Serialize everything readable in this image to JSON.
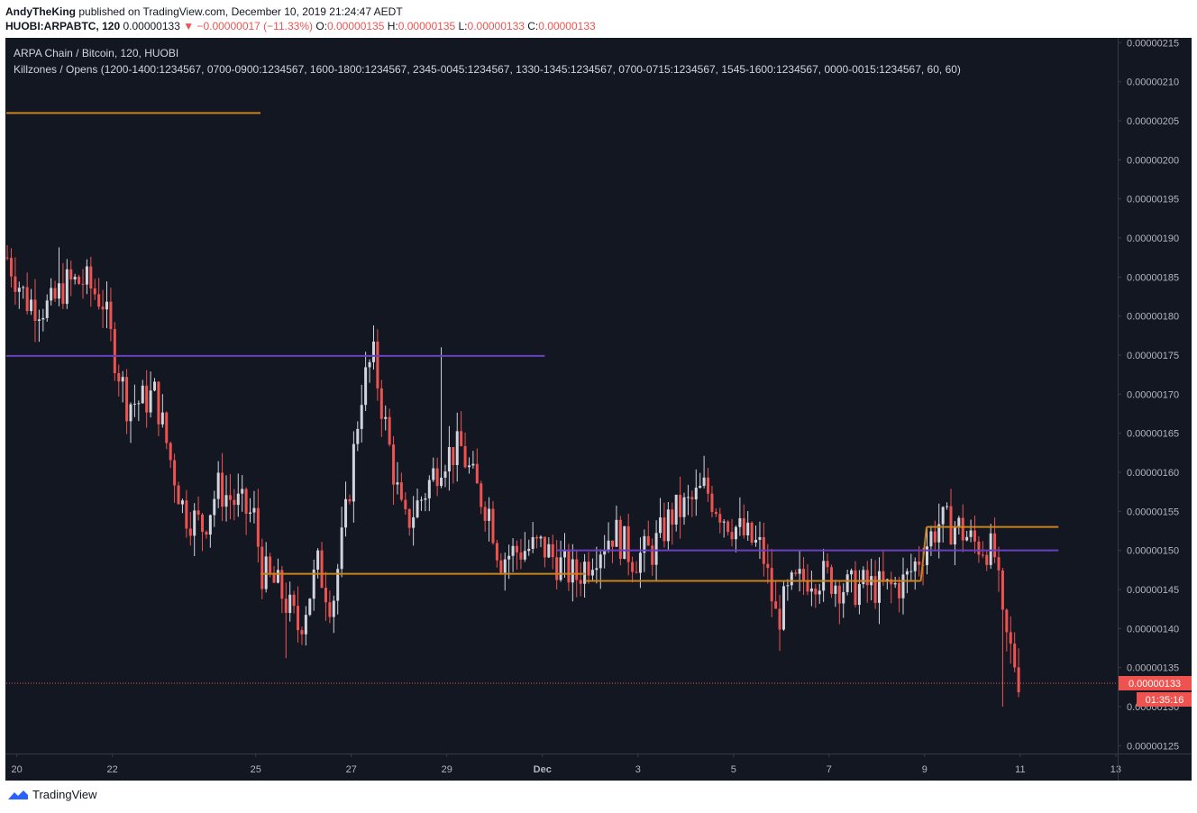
{
  "header": {
    "author": "AndyTheKing",
    "published": "published on TradingView.com, December 10, 2019 21:24:47 AEDT",
    "symbol": "HUOBI:ARPABTC, 120",
    "last": "0.00000133",
    "change": "▼ −0.00000017 (−11.33%)",
    "o_label": "O:",
    "o": "0.00000135",
    "h_label": "H:",
    "h": "0.00000135",
    "l_label": "L:",
    "l": "0.00000133",
    "c_label": "C:",
    "c": "0.00000133"
  },
  "legend": {
    "series": "ARPA Chain / Bitcoin, 120, HUOBI",
    "indicator": "Killzones / Opens (1200-1400:1234567, 0700-0900:1234567, 1600-1800:1234567, 2345-0045:1234567, 1330-1345:1234567, 0700-0715:1234567, 1545-1600:1234567, 0000-0015:1234567, 60, 60)"
  },
  "price_label": "0.00000133",
  "countdown": "01:35:16",
  "footer": {
    "brand": "TradingView"
  },
  "colors": {
    "background": "#131722",
    "up": "#d1d4dc",
    "down": "#ef5350",
    "orange": "#c9821c",
    "purple": "#6a3fbf",
    "axis_text": "#b2b5be"
  },
  "chart_data": {
    "type": "candlestick",
    "y_ticks": [
      "0.00000125",
      "0.00000130",
      "0.00000135",
      "0.00000140",
      "0.00000145",
      "0.00000150",
      "0.00000155",
      "0.00000160",
      "0.00000165",
      "0.00000170",
      "0.00000175",
      "0.00000180",
      "0.00000185",
      "0.00000190",
      "0.00000195",
      "0.00000200",
      "0.00000205",
      "0.00000210",
      "0.00000215"
    ],
    "ylim": [
      1.24e-06,
      2.155e-06
    ],
    "x_ticks": [
      "20",
      "22",
      "25",
      "27",
      "29",
      "Dec",
      "3",
      "5",
      "7",
      "9",
      "11",
      "13"
    ],
    "x_tick_days": [
      20,
      22,
      25,
      27,
      29,
      31,
      33,
      35,
      37,
      39,
      41,
      43
    ],
    "xlim": [
      19.78,
      43.04
    ],
    "last_price": 1.33e-06,
    "level_lines": [
      {
        "color": "orange",
        "x0": 19.78,
        "x1": 25.1,
        "y": 2.06e-06
      },
      {
        "color": "purple",
        "x0": 19.78,
        "x1": 31.05,
        "y": 1.749e-06
      },
      {
        "color": "orange",
        "x0": 25.1,
        "x1": 31.9,
        "y": 1.47e-06
      },
      {
        "color": "orange",
        "x0": 31.9,
        "x1": 38.92,
        "y": 1.461e-06
      },
      {
        "color": "orange",
        "x0": 38.92,
        "x1": 39.04,
        "y": 1.461e-06,
        "y_end": 1.53e-06
      },
      {
        "color": "orange",
        "x0": 39.04,
        "x1": 41.8,
        "y": 1.53e-06
      },
      {
        "color": "purple",
        "x0": 31.3,
        "x1": 41.8,
        "y": 1.5e-06
      }
    ],
    "price_path": [
      [
        19.8,
        1.875e-06
      ],
      [
        20.2,
        1.82e-06
      ],
      [
        20.7,
        1.81e-06
      ],
      [
        21.0,
        1.84e-06
      ],
      [
        21.4,
        1.845e-06
      ],
      [
        21.8,
        1.82e-06
      ],
      [
        21.95,
        1.775e-06
      ],
      [
        22.3,
        1.69e-06
      ],
      [
        22.6,
        1.69e-06
      ],
      [
        22.9,
        1.7e-06
      ],
      [
        23.2,
        1.62e-06
      ],
      [
        23.5,
        1.55e-06
      ],
      [
        23.9,
        1.53e-06
      ],
      [
        24.2,
        1.58e-06
      ],
      [
        24.6,
        1.56e-06
      ],
      [
        25.0,
        1.54e-06
      ],
      [
        25.1,
        1.475e-06
      ],
      [
        25.5,
        1.45e-06
      ],
      [
        25.9,
        1.4e-06
      ],
      [
        26.3,
        1.48e-06
      ],
      [
        26.6,
        1.43e-06
      ],
      [
        26.9,
        1.55e-06
      ],
      [
        27.2,
        1.7e-06
      ],
      [
        27.45,
        1.75e-06
      ],
      [
        27.8,
        1.63e-06
      ],
      [
        28.1,
        1.53e-06
      ],
      [
        28.5,
        1.57e-06
      ],
      [
        28.9,
        1.62e-06
      ],
      [
        29.3,
        1.63e-06
      ],
      [
        29.6,
        1.58e-06
      ],
      [
        29.9,
        1.55e-06
      ],
      [
        30.1,
        1.49e-06
      ],
      [
        30.5,
        1.5e-06
      ],
      [
        31.0,
        1.505e-06
      ],
      [
        31.4,
        1.48e-06
      ],
      [
        31.7,
        1.465e-06
      ],
      [
        32.1,
        1.5e-06
      ],
      [
        32.5,
        1.525e-06
      ],
      [
        32.9,
        1.49e-06
      ],
      [
        33.3,
        1.5e-06
      ],
      [
        33.7,
        1.545e-06
      ],
      [
        34.1,
        1.56e-06
      ],
      [
        34.4,
        1.58e-06
      ],
      [
        34.8,
        1.545e-06
      ],
      [
        35.2,
        1.52e-06
      ],
      [
        35.6,
        1.5e-06
      ],
      [
        35.9,
        1.41e-06
      ],
      [
        36.2,
        1.45e-06
      ],
      [
        36.6,
        1.47e-06
      ],
      [
        37.0,
        1.465e-06
      ],
      [
        37.4,
        1.45e-06
      ],
      [
        37.8,
        1.455e-06
      ],
      [
        38.2,
        1.45e-06
      ],
      [
        38.6,
        1.46e-06
      ],
      [
        39.0,
        1.505e-06
      ],
      [
        39.3,
        1.535e-06
      ],
      [
        39.7,
        1.53e-06
      ],
      [
        40.0,
        1.51e-06
      ],
      [
        40.3,
        1.505e-06
      ],
      [
        40.5,
        1.49e-06
      ],
      [
        40.6,
        1.41e-06
      ],
      [
        40.75,
        1.38e-06
      ],
      [
        40.9,
        1.355e-06
      ],
      [
        41.0,
        1.33e-06
      ]
    ],
    "spikes": [
      {
        "x": 25.6,
        "low": 1.362e-06
      },
      {
        "x": 27.45,
        "high": 1.788e-06
      },
      {
        "x": 28.85,
        "high": 1.76e-06
      },
      {
        "x": 20.9,
        "high": 1.888e-06
      },
      {
        "x": 40.6,
        "low": 1.3e-06
      }
    ]
  }
}
